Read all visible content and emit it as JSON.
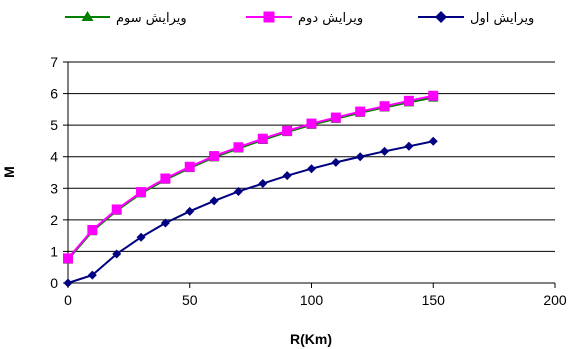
{
  "chart_data": {
    "type": "line",
    "xlabel": "R(Km)",
    "ylabel": "M",
    "xlim": [
      0,
      200
    ],
    "ylim": [
      0,
      7
    ],
    "xticks": [
      0,
      50,
      100,
      150,
      200
    ],
    "yticks": [
      0,
      1,
      2,
      3,
      4,
      5,
      6,
      7
    ],
    "grid": "horizontal",
    "legend_position": "top",
    "x": [
      0,
      10,
      20,
      30,
      40,
      50,
      60,
      70,
      80,
      90,
      100,
      110,
      120,
      130,
      140,
      150
    ],
    "series": [
      {
        "name": "ویرایش اول",
        "marker": "diamond",
        "color": "#000080",
        "values": [
          0.0,
          0.25,
          0.92,
          1.45,
          1.9,
          2.27,
          2.6,
          2.9,
          3.15,
          3.4,
          3.62,
          3.82,
          4.0,
          4.17,
          4.33,
          4.49
        ]
      },
      {
        "name": "ویرایش دوم",
        "marker": "square",
        "color": "#ff00ff",
        "values": [
          0.78,
          1.68,
          2.33,
          2.88,
          3.31,
          3.68,
          4.02,
          4.3,
          4.57,
          4.82,
          5.05,
          5.24,
          5.43,
          5.6,
          5.77,
          5.93
        ]
      },
      {
        "name": "ویرایش سوم",
        "marker": "triangle",
        "color": "#008000",
        "values": [
          0.74,
          1.64,
          2.29,
          2.84,
          3.27,
          3.64,
          3.98,
          4.26,
          4.53,
          4.78,
          5.01,
          5.2,
          5.39,
          5.56,
          5.72,
          5.87
        ]
      }
    ]
  }
}
